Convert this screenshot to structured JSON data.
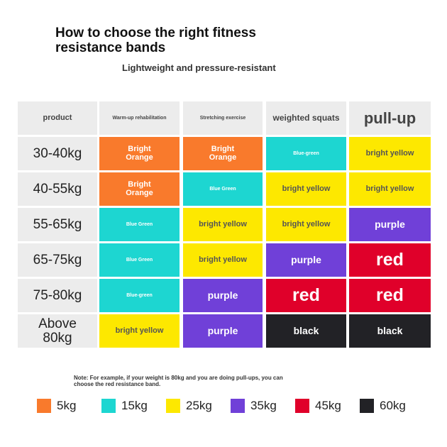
{
  "header": {
    "title": "How to choose the right fitness resistance bands",
    "subtitle": "Lightweight and pressure-resistant"
  },
  "table": {
    "columns": [
      "product",
      "Warm-up rehabilitation",
      "Stretching exercise",
      "weighted squats",
      "pull-up"
    ],
    "rows": [
      {
        "label": "30-40kg",
        "cells": [
          {
            "text": "Bright Orange",
            "color": "#f97a2c"
          },
          {
            "text": "Bright Orange",
            "color": "#f97a2c"
          },
          {
            "text": "Blue-green",
            "color": "#1dd6d1"
          },
          {
            "text": "bright yellow",
            "color": "#fde800"
          }
        ]
      },
      {
        "label": "40-55kg",
        "cells": [
          {
            "text": "Bright Orange",
            "color": "#f97a2c"
          },
          {
            "text": "Blue Green",
            "color": "#1dd6d1"
          },
          {
            "text": "bright yellow",
            "color": "#fde800"
          },
          {
            "text": "bright yellow",
            "color": "#fde800"
          }
        ]
      },
      {
        "label": "55-65kg",
        "cells": [
          {
            "text": "Blue Green",
            "color": "#1dd6d1"
          },
          {
            "text": "bright yellow",
            "color": "#fde800"
          },
          {
            "text": "bright yellow",
            "color": "#fde800"
          },
          {
            "text": "purple",
            "color": "#7040d8"
          }
        ]
      },
      {
        "label": "65-75kg",
        "cells": [
          {
            "text": "Blue Green",
            "color": "#1dd6d1"
          },
          {
            "text": "bright yellow",
            "color": "#fde800"
          },
          {
            "text": "purple",
            "color": "#7040d8"
          },
          {
            "text": "red",
            "color": "#e0002a"
          }
        ]
      },
      {
        "label": "75-80kg",
        "cells": [
          {
            "text": "Blue-green",
            "color": "#1dd6d1"
          },
          {
            "text": "purple",
            "color": "#7040d8"
          },
          {
            "text": "red",
            "color": "#e0002a"
          },
          {
            "text": "red",
            "color": "#e0002a"
          }
        ]
      },
      {
        "label": "Above 80kg",
        "cells": [
          {
            "text": "bright yellow",
            "color": "#fde800"
          },
          {
            "text": "purple",
            "color": "#7040d8"
          },
          {
            "text": "black",
            "color": "#222226"
          },
          {
            "text": "black",
            "color": "#222226"
          }
        ]
      }
    ]
  },
  "note": "Note: For example, if your weight is 80kg and you are doing pull-ups, you can choose the red resistance band.",
  "legend": [
    {
      "label": "5kg",
      "color": "#f97a2c"
    },
    {
      "label": "15kg",
      "color": "#1dd6d1"
    },
    {
      "label": "25kg",
      "color": "#fde800"
    },
    {
      "label": "35kg",
      "color": "#7040d8"
    },
    {
      "label": "45kg",
      "color": "#e0002a"
    },
    {
      "label": "60kg",
      "color": "#222226"
    }
  ]
}
